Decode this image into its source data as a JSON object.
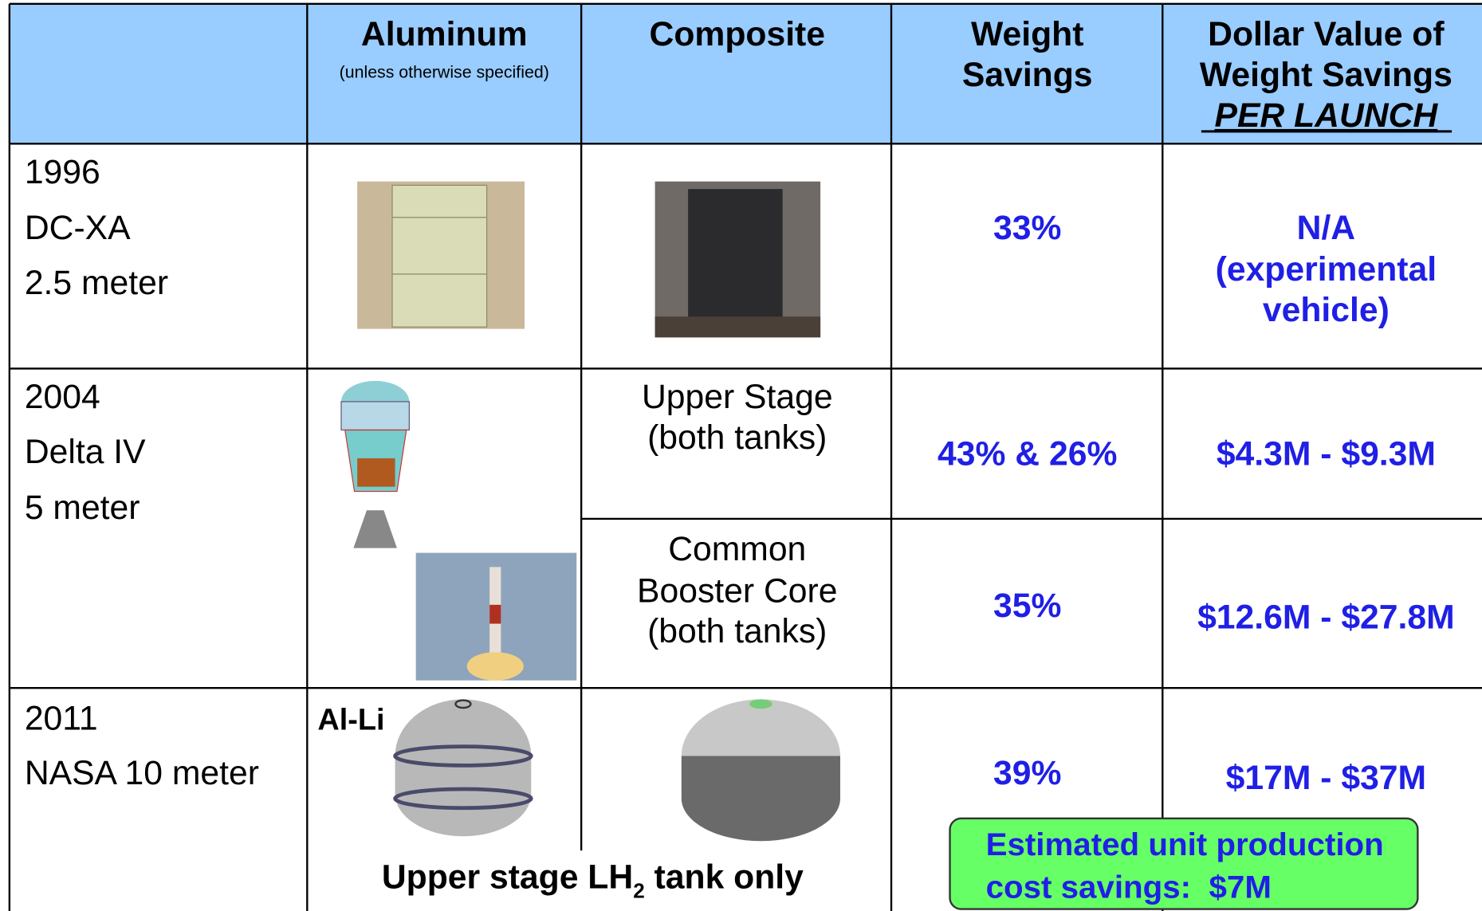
{
  "table": {
    "header": {
      "aluminum": "Aluminum",
      "aluminum_note": "(unless otherwise specified)",
      "composite": "Composite",
      "weight_savings": [
        "Weight",
        "Savings"
      ],
      "dollar_value": [
        "Dollar Value of",
        "Weight Savings",
        "PER LAUNCH"
      ]
    },
    "rows": [
      {
        "vehicle": [
          "1996",
          "DC-XA",
          "2.5 meter"
        ],
        "weight_savings": "33%",
        "dollar_value": [
          "N/A",
          "(experimental",
          "vehicle)"
        ]
      },
      {
        "vehicle": [
          "2004",
          "Delta IV",
          "5 meter"
        ],
        "subrows": [
          {
            "composite": [
              "Upper Stage",
              "(both tanks)"
            ],
            "weight_savings": "43% & 26%",
            "dollar_value": "$4.3M - $9.3M"
          },
          {
            "composite": [
              "Common",
              "Booster Core",
              "(both tanks)"
            ],
            "weight_savings": "35%",
            "dollar_value": "$12.6M - $27.8M"
          }
        ]
      },
      {
        "vehicle": [
          "2011",
          "NASA 10 meter"
        ],
        "aluminum_label": "Al-Li",
        "weight_savings": "39%",
        "dollar_value": "$17M - $37M",
        "note": [
          "Upper stage LH",
          "2",
          " tank only"
        ],
        "callout": [
          "Estimated unit production",
          "cost savings:  $7M"
        ]
      }
    ]
  }
}
